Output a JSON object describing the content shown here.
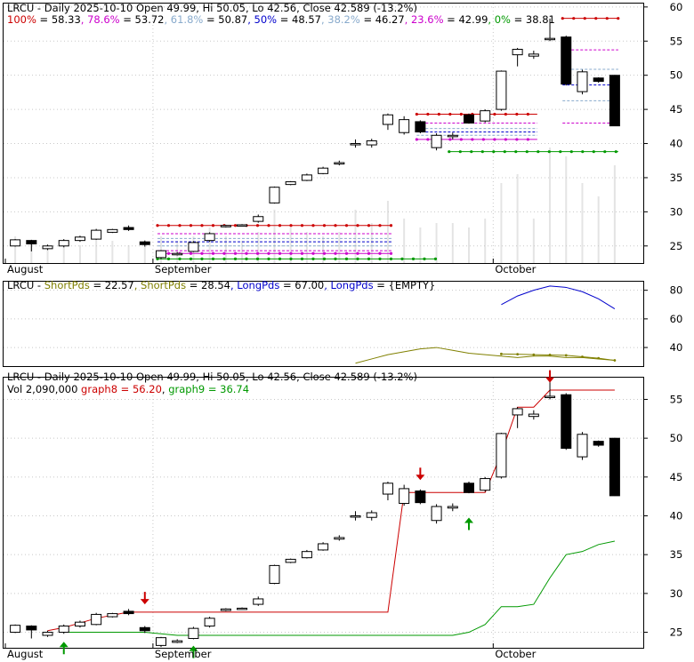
{
  "panels": {
    "top": {
      "title_prefix": "LRCU",
      "fib_levels": [
        {
          "label": "100%",
          "value": "58.33",
          "color": "#cc0000"
        },
        {
          "label": "78.6%",
          "value": "53.72",
          "color": "#cc00cc"
        },
        {
          "label": "61.8%",
          "value": "50.87",
          "color": "#88aacc"
        },
        {
          "label": "50%",
          "value": "48.57",
          "color": "#0000cc"
        },
        {
          "label": "38.2%",
          "value": "46.27",
          "color": "#88aacc"
        },
        {
          "label": "23.6%",
          "value": "42.99",
          "color": "#cc00cc"
        },
        {
          "label": "0%",
          "value": "38.81",
          "color": "#009900"
        }
      ]
    },
    "middle": {
      "title_prefix": "LRCU",
      "entries": [
        {
          "label": "ShortPds",
          "value": "22.57",
          "color": "#808000"
        },
        {
          "label": "ShortPds",
          "value": "28.54",
          "color": "#808000"
        },
        {
          "label": "LongPds",
          "value": "67.00",
          "color": "#0000cc"
        },
        {
          "label": "LongPds",
          "value": "{EMPTY}",
          "color": "#0000cc"
        }
      ]
    },
    "bottom": {
      "title": "LRCU - Daily 2025-10-10 Open 49.99, Hi 50.05, Lo 42.56, Close 42.589 (-13.2%)",
      "vol_text": "Vol 2,090,000",
      "graph8_text": "graph8 = 56.20",
      "graph9_text": "graph9 = 36.74"
    }
  },
  "chart_data": [
    {
      "type": "candlestick",
      "title": "LRCU - Daily 2025-10-10 Open 49.99, Hi 50.05, Lo 42.56, Close 42.589 (-13.2%)",
      "x_tick_labels": [
        "August",
        "September",
        "October"
      ],
      "y_ticks": [
        25,
        30,
        35,
        40,
        45,
        50,
        55,
        60
      ],
      "ylim": [
        22.5,
        60.5
      ],
      "candles": [
        {
          "o": 25.0,
          "c": 25.9,
          "h": 26.0,
          "l": 24.9
        },
        {
          "o": 25.8,
          "c": 25.3,
          "h": 25.9,
          "l": 24.2
        },
        {
          "o": 24.6,
          "c": 25.0,
          "h": 25.2,
          "l": 24.4
        },
        {
          "o": 25.0,
          "c": 25.8,
          "h": 26.0,
          "l": 24.8
        },
        {
          "o": 25.8,
          "c": 26.3,
          "h": 26.5,
          "l": 25.6
        },
        {
          "o": 26.0,
          "c": 27.3,
          "h": 27.5,
          "l": 25.9
        },
        {
          "o": 27.0,
          "c": 27.4,
          "h": 27.5,
          "l": 26.9
        },
        {
          "o": 27.7,
          "c": 27.4,
          "h": 28.0,
          "l": 27.2
        },
        {
          "o": 25.6,
          "c": 25.2,
          "h": 25.8,
          "l": 24.9
        },
        {
          "o": 23.3,
          "c": 24.3,
          "h": 24.4,
          "l": 23.1
        },
        {
          "o": 23.7,
          "c": 23.9,
          "h": 24.1,
          "l": 23.6
        },
        {
          "o": 24.2,
          "c": 25.5,
          "h": 25.7,
          "l": 24.1
        },
        {
          "o": 25.8,
          "c": 26.8,
          "h": 27.0,
          "l": 25.6
        },
        {
          "o": 27.8,
          "c": 28.0,
          "h": 28.1,
          "l": 27.7
        },
        {
          "o": 28.0,
          "c": 28.1,
          "h": 28.2,
          "l": 27.9
        },
        {
          "o": 28.6,
          "c": 29.3,
          "h": 29.6,
          "l": 28.4
        },
        {
          "o": 31.3,
          "c": 33.6,
          "h": 33.7,
          "l": 31.2
        },
        {
          "o": 34.0,
          "c": 34.4,
          "h": 34.5,
          "l": 33.9
        },
        {
          "o": 34.6,
          "c": 35.4,
          "h": 35.6,
          "l": 34.5
        },
        {
          "o": 35.6,
          "c": 36.4,
          "h": 36.6,
          "l": 35.5
        },
        {
          "o": 37.0,
          "c": 37.2,
          "h": 37.5,
          "l": 36.8
        },
        {
          "o": 39.9,
          "c": 40.0,
          "h": 40.6,
          "l": 39.4
        },
        {
          "o": 39.8,
          "c": 40.4,
          "h": 40.7,
          "l": 39.4
        },
        {
          "o": 42.8,
          "c": 44.2,
          "h": 44.4,
          "l": 42.0
        },
        {
          "o": 41.6,
          "c": 43.5,
          "h": 44.0,
          "l": 41.3
        },
        {
          "o": 43.2,
          "c": 41.7,
          "h": 43.4,
          "l": 41.5
        },
        {
          "o": 39.4,
          "c": 41.2,
          "h": 41.5,
          "l": 39.0
        },
        {
          "o": 41.0,
          "c": 41.2,
          "h": 41.6,
          "l": 40.6
        },
        {
          "o": 44.2,
          "c": 43.0,
          "h": 44.4,
          "l": 42.9
        },
        {
          "o": 43.3,
          "c": 44.8,
          "h": 45.0,
          "l": 43.1
        },
        {
          "o": 45.0,
          "c": 50.6,
          "h": 50.7,
          "l": 44.8
        },
        {
          "o": 53.0,
          "c": 53.8,
          "h": 54.0,
          "l": 51.3
        },
        {
          "o": 52.8,
          "c": 53.1,
          "h": 53.6,
          "l": 52.4
        },
        {
          "o": 55.3,
          "c": 55.4,
          "h": 58.3,
          "l": 55.0
        },
        {
          "o": 55.6,
          "c": 48.7,
          "h": 55.8,
          "l": 48.5
        },
        {
          "o": 47.6,
          "c": 50.5,
          "h": 50.8,
          "l": 47.2
        },
        {
          "o": 49.6,
          "c": 49.1,
          "h": 49.7,
          "l": 48.9
        },
        {
          "o": 49.99,
          "c": 42.589,
          "h": 50.05,
          "l": 42.56
        }
      ]
    },
    {
      "type": "line",
      "title": "LRCU - ShortPds = 22.57, ShortPds = 28.54, LongPds = 67.00, LongPds = {EMPTY}",
      "y_ticks": [
        40,
        60,
        80
      ],
      "ylim": [
        27,
        86
      ]
    },
    {
      "type": "candlestick",
      "title": "LRCU - Daily 2025-10-10 Open 49.99, Hi 50.05, Lo 42.56, Close 42.589 (-13.2%)",
      "x_tick_labels": [
        "August",
        "September",
        "October"
      ],
      "y_ticks": [
        25,
        30,
        35,
        40,
        45,
        50,
        55
      ],
      "ylim": [
        23.0,
        57.8
      ],
      "graph8": 56.2,
      "graph9": 36.74
    }
  ]
}
